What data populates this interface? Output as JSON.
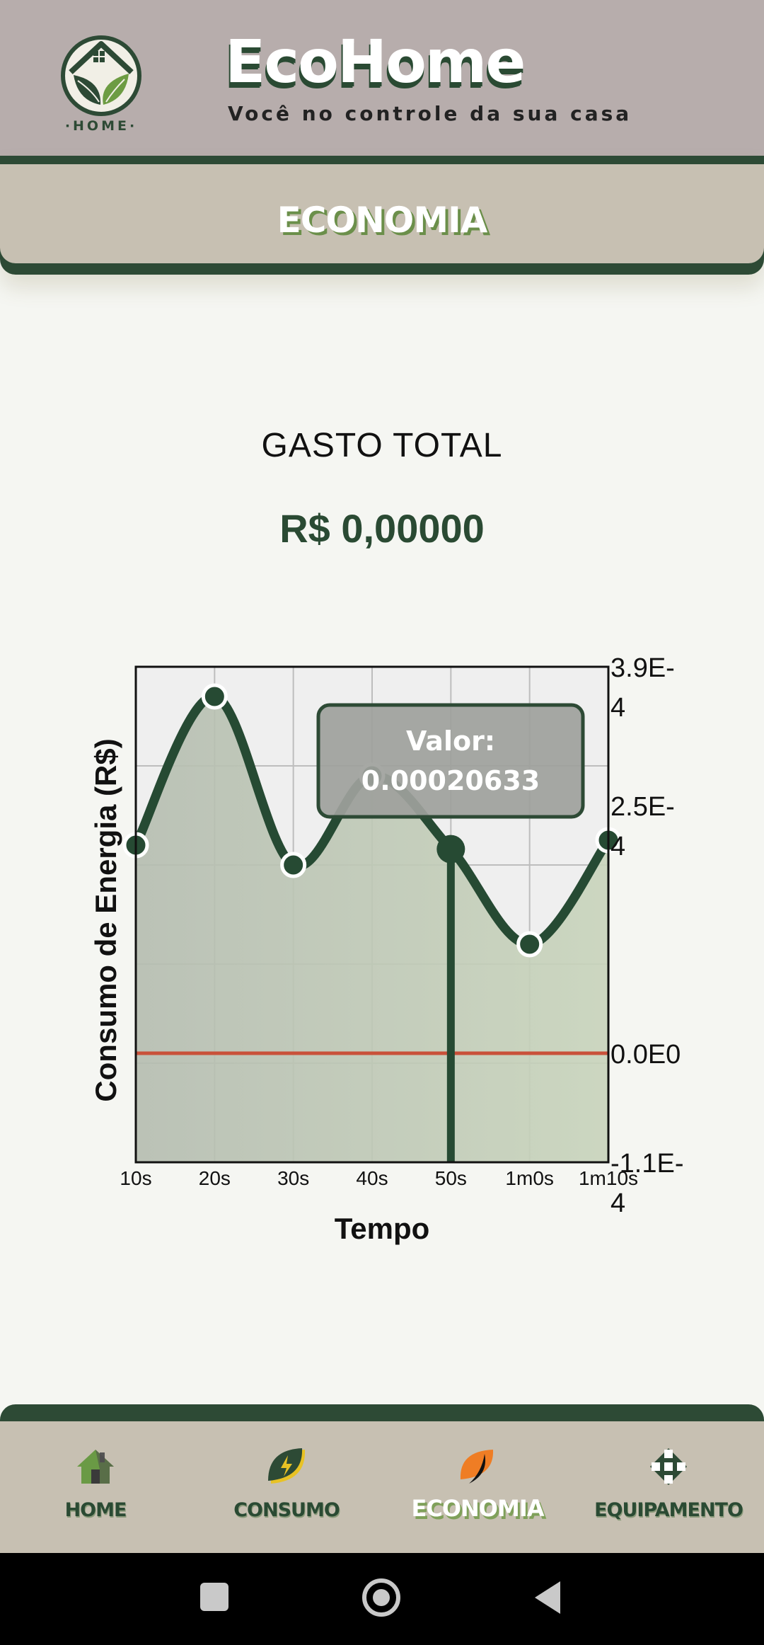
{
  "header": {
    "title": "EcoHome",
    "subtitle": "Você no controle da sua casa",
    "logo_text": "·HOME·"
  },
  "section": {
    "title": "ECONOMIA"
  },
  "summary": {
    "label": "GASTO TOTAL",
    "value": "R$ 0,00000"
  },
  "chart_data": {
    "type": "line",
    "x": [
      "10s",
      "20s",
      "30s",
      "40s",
      "50s",
      "1m0s",
      "1m10s"
    ],
    "y": [
      0.00021,
      0.00036,
      0.00019,
      0.00028,
      0.000206,
      0.00011,
      0.000215
    ],
    "xlabel": "Tempo",
    "ylabel": "Consumo de Energia (R$)",
    "y_ticks": [
      "3.9E-4",
      "2.5E-4",
      "0.0E0",
      "-1.1E-4"
    ],
    "ylim": [
      -0.00011,
      0.00039
    ],
    "baseline": 0,
    "selected_index": 4,
    "tooltip": {
      "label": "Valor:",
      "value": "0.00020633"
    },
    "colors": {
      "line": "#264a33",
      "baseline": "#c9513a",
      "fill": "#c5d0b6",
      "tooltip_bg": "#9ea19c"
    },
    "grid": true
  },
  "nav": {
    "items": [
      {
        "label": "HOME",
        "icon": "house-icon"
      },
      {
        "label": "CONSUMO",
        "icon": "lightning-leaf-icon"
      },
      {
        "label": "ECONOMIA",
        "icon": "leaf-icon"
      },
      {
        "label": "EQUIPAMENTO",
        "icon": "network-icon"
      }
    ],
    "active": 2
  }
}
